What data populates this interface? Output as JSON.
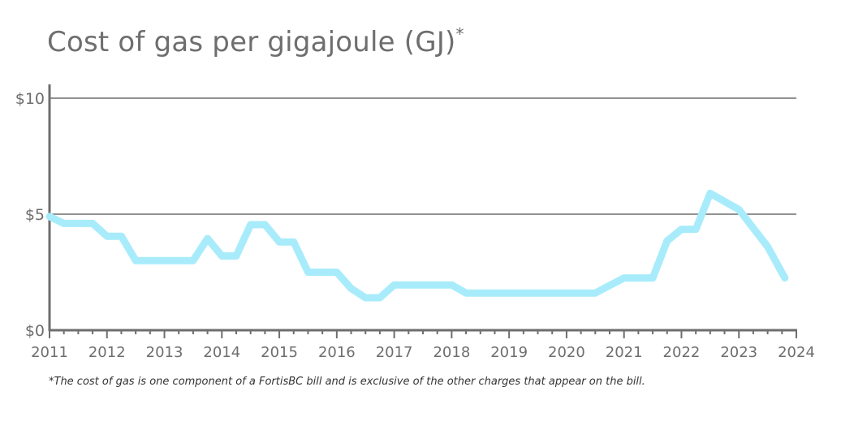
{
  "chart_data": {
    "type": "line",
    "title": "Cost of gas per gigajoule (GJ)",
    "title_mark": "*",
    "xlabel": "",
    "ylabel": "",
    "xlim": [
      2011,
      2024
    ],
    "ylim": [
      0,
      10
    ],
    "x_ticks": [
      "2011",
      "2012",
      "2013",
      "2014",
      "2015",
      "2016",
      "2017",
      "2018",
      "2019",
      "2020",
      "2021",
      "2022",
      "2023",
      "2024"
    ],
    "y_ticks": [
      {
        "value": 0,
        "label": "$0"
      },
      {
        "value": 5,
        "label": "$5"
      },
      {
        "value": 10,
        "label": "$10"
      }
    ],
    "grid": "horizontal",
    "line_color": "#a8ecfb",
    "series": [
      {
        "values": [
          [
            2011.0,
            4.9
          ],
          [
            2011.25,
            4.6
          ],
          [
            2011.75,
            4.6
          ],
          [
            2012.0,
            4.05
          ],
          [
            2012.25,
            4.05
          ],
          [
            2012.5,
            3.0
          ],
          [
            2013.5,
            3.0
          ],
          [
            2013.75,
            3.95
          ],
          [
            2014.0,
            3.2
          ],
          [
            2014.25,
            3.2
          ],
          [
            2014.5,
            4.55
          ],
          [
            2014.75,
            4.55
          ],
          [
            2015.0,
            3.8
          ],
          [
            2015.25,
            3.8
          ],
          [
            2015.5,
            2.5
          ],
          [
            2016.0,
            2.5
          ],
          [
            2016.25,
            1.8
          ],
          [
            2016.5,
            1.4
          ],
          [
            2016.75,
            1.4
          ],
          [
            2017.0,
            1.95
          ],
          [
            2018.0,
            1.95
          ],
          [
            2018.25,
            1.6
          ],
          [
            2020.5,
            1.6
          ],
          [
            2021.0,
            2.25
          ],
          [
            2021.5,
            2.25
          ],
          [
            2021.75,
            3.85
          ],
          [
            2022.0,
            4.35
          ],
          [
            2022.25,
            4.35
          ],
          [
            2022.5,
            5.9
          ],
          [
            2023.0,
            5.2
          ],
          [
            2023.5,
            3.6
          ],
          [
            2023.8,
            2.25
          ]
        ]
      }
    ]
  },
  "footnote": "*The cost of gas is one component of a FortisBC bill and is exclusive of the other charges that appear on the bill."
}
